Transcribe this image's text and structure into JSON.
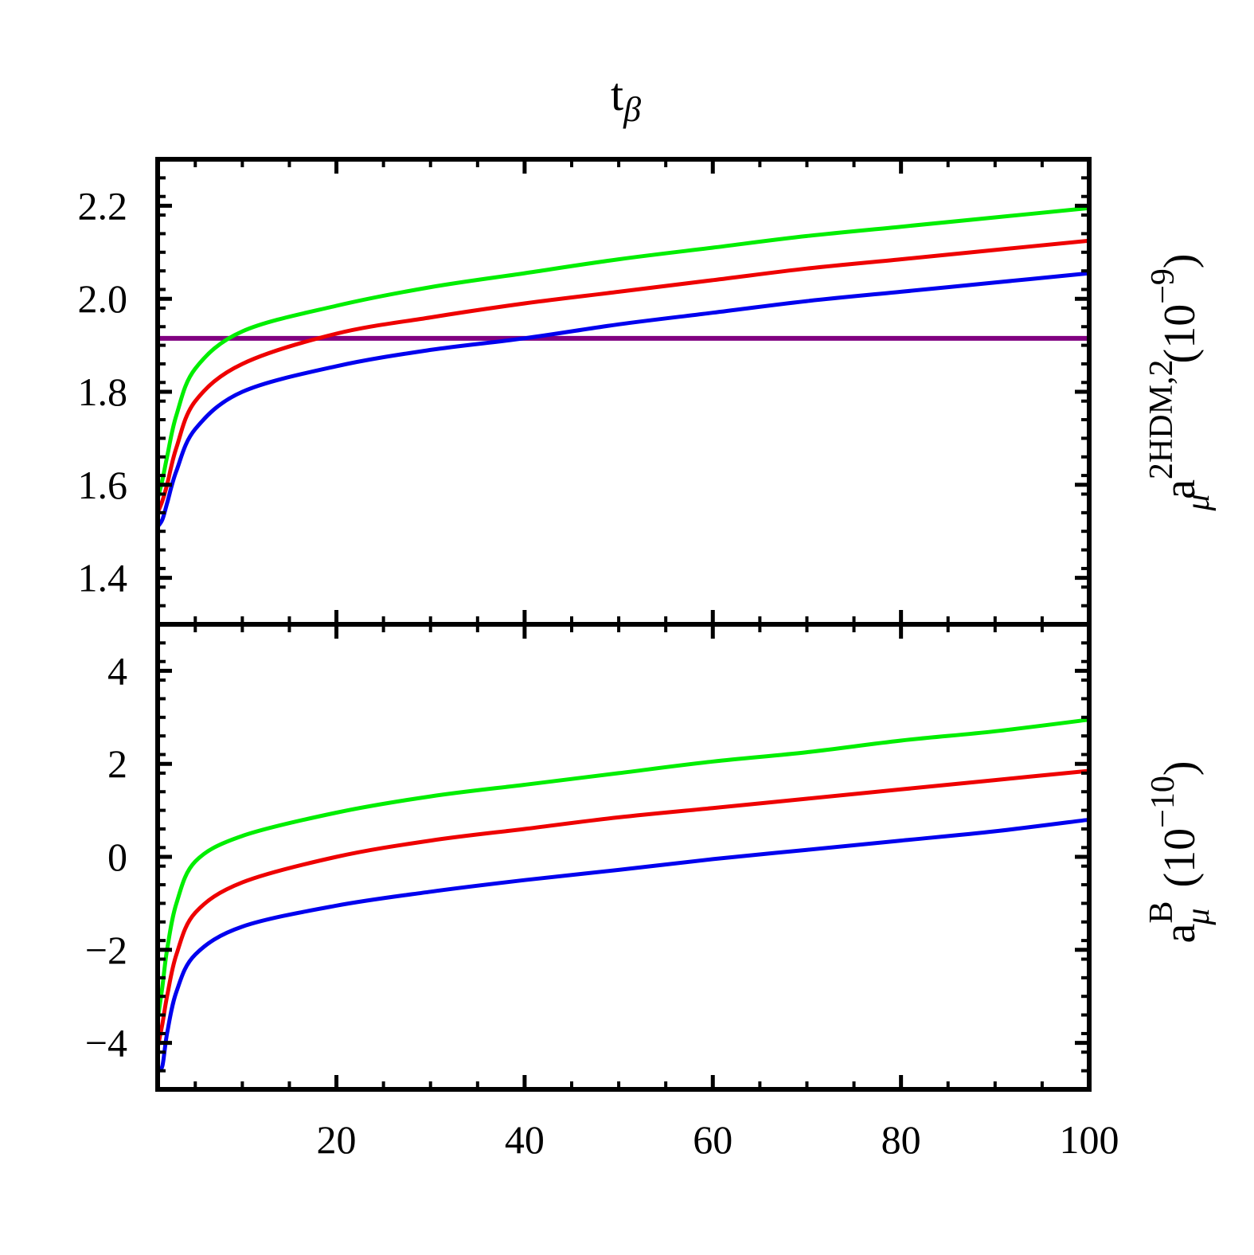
{
  "chart_data": {
    "type": "line",
    "title": "t",
    "title_subscript": "β",
    "x": [
      1,
      1.5,
      2,
      3,
      5,
      10,
      20,
      30,
      40,
      50,
      60,
      70,
      80,
      90,
      100
    ],
    "xlim": [
      1,
      100
    ],
    "xticks": [
      20,
      40,
      60,
      80,
      100
    ],
    "xtick_labels": [
      "20",
      "40",
      "60",
      "80",
      "100"
    ],
    "xlabel": "",
    "panels": [
      {
        "ylabel": "a",
        "ylabel_sub": "μ",
        "ylabel_sup": "2HDM,2",
        "ylabel_unit": " (10",
        "ylabel_unit_sup": "−9",
        "ylabel_unit_close": ")",
        "ylim": [
          1.3,
          2.3
        ],
        "yticks": [
          1.4,
          1.6,
          1.8,
          2.0,
          2.2
        ],
        "ytick_labels": [
          "1.4",
          "1.6",
          "1.8",
          "2.0",
          "2.2"
        ],
        "reference_line": {
          "y": 1.915,
          "color": "#800080"
        },
        "series": [
          {
            "name": "green",
            "color": "#00ee00",
            "values": [
              1.57,
              1.61,
              1.66,
              1.75,
              1.85,
              1.93,
              1.985,
              2.025,
              2.055,
              2.085,
              2.11,
              2.135,
              2.155,
              2.175,
              2.195
            ]
          },
          {
            "name": "red",
            "color": "#ee0000",
            "values": [
              1.54,
              1.565,
              1.6,
              1.68,
              1.78,
              1.86,
              1.925,
              1.96,
              1.99,
              2.015,
              2.04,
              2.065,
              2.085,
              2.105,
              2.125
            ]
          },
          {
            "name": "blue",
            "color": "#0000ee",
            "values": [
              1.51,
              1.525,
              1.56,
              1.63,
              1.72,
              1.8,
              1.855,
              1.89,
              1.915,
              1.945,
              1.97,
              1.995,
              2.015,
              2.035,
              2.055
            ]
          }
        ]
      },
      {
        "ylabel": "a",
        "ylabel_sub": "μ",
        "ylabel_sup": "B",
        "ylabel_unit": " (10",
        "ylabel_unit_sup": "−10",
        "ylabel_unit_close": ")",
        "ylim": [
          -5,
          5
        ],
        "yticks": [
          -4,
          -2,
          0,
          2,
          4
        ],
        "ytick_labels": [
          "−4",
          "−2",
          "0",
          "2",
          "4"
        ],
        "series": [
          {
            "name": "green",
            "color": "#00ee00",
            "values": [
              -3.5,
              -2.8,
              -2.0,
              -1.0,
              -0.1,
              0.45,
              0.95,
              1.3,
              1.55,
              1.8,
              2.05,
              2.25,
              2.5,
              2.7,
              2.95
            ]
          },
          {
            "name": "red",
            "color": "#ee0000",
            "values": [
              -4.1,
              -3.6,
              -3.0,
              -2.1,
              -1.2,
              -0.55,
              0.0,
              0.35,
              0.6,
              0.85,
              1.05,
              1.25,
              1.45,
              1.65,
              1.85
            ]
          },
          {
            "name": "blue",
            "color": "#0000ee",
            "values": [
              -4.6,
              -4.5,
              -3.8,
              -2.9,
              -2.1,
              -1.5,
              -1.05,
              -0.75,
              -0.5,
              -0.28,
              -0.05,
              0.15,
              0.35,
              0.55,
              0.8
            ]
          }
        ]
      }
    ]
  }
}
